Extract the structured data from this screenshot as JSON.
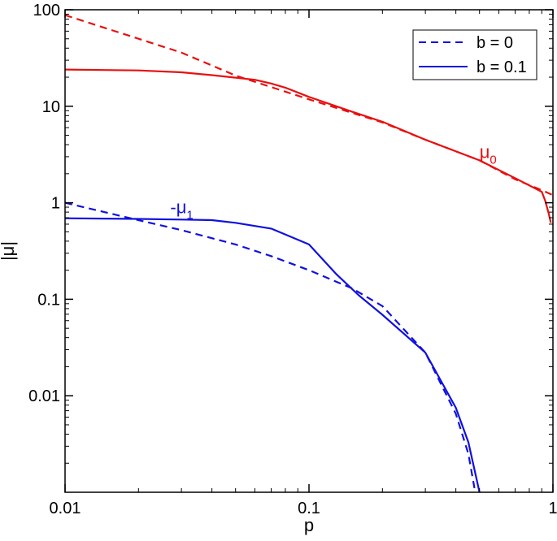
{
  "chart_data": {
    "type": "line",
    "xlabel": "p",
    "ylabel": "|μ|",
    "xscale": "log",
    "yscale": "log",
    "xlim": [
      0.01,
      1
    ],
    "ylim": [
      0.001,
      100
    ],
    "xticks": [
      {
        "value": 0.01,
        "label": "0.01"
      },
      {
        "value": 0.1,
        "label": "0.1"
      },
      {
        "value": 1,
        "label": "1"
      }
    ],
    "yticks": [
      {
        "value": 0.01,
        "label": "0.01"
      },
      {
        "value": 0.1,
        "label": "0.1"
      },
      {
        "value": 1,
        "label": "1"
      },
      {
        "value": 10,
        "label": "10"
      },
      {
        "value": 100,
        "label": "100"
      }
    ],
    "grid": false,
    "legend": {
      "position": "top-right",
      "entries": [
        {
          "label": "b = 0",
          "color": "#1010e0",
          "dash": "dashed"
        },
        {
          "label": "b = 0.1",
          "color": "#1010e0",
          "dash": "solid"
        }
      ]
    },
    "series": [
      {
        "color": "#e81010",
        "dash": "dashed",
        "points": [
          [
            0.01,
            88
          ],
          [
            0.03,
            36
          ],
          [
            0.05,
            20.8
          ],
          [
            0.1,
            11.8
          ],
          [
            0.2,
            6.8
          ],
          [
            0.3,
            4.5
          ],
          [
            0.5,
            2.75
          ],
          [
            0.7,
            1.75
          ],
          [
            0.9,
            1.35
          ],
          [
            1.0,
            1.2
          ]
        ]
      },
      {
        "color": "#e81010",
        "dash": "solid",
        "points": [
          [
            0.01,
            24
          ],
          [
            0.02,
            23.5
          ],
          [
            0.03,
            22.5
          ],
          [
            0.04,
            21
          ],
          [
            0.05,
            19.8
          ],
          [
            0.06,
            18.8
          ],
          [
            0.07,
            17.2
          ],
          [
            0.08,
            15.6
          ],
          [
            0.1,
            12.5
          ],
          [
            0.15,
            8.8
          ],
          [
            0.2,
            6.9
          ],
          [
            0.3,
            4.5
          ],
          [
            0.5,
            2.75
          ],
          [
            0.7,
            1.8
          ],
          [
            0.9,
            1.3
          ],
          [
            0.93,
            1.05
          ],
          [
            0.96,
            0.78
          ],
          [
            0.98,
            0.62
          ]
        ]
      },
      {
        "color": "#1010e0",
        "dash": "dashed",
        "points": [
          [
            0.01,
            1.0
          ],
          [
            0.02,
            0.66
          ],
          [
            0.03,
            0.52
          ],
          [
            0.05,
            0.37
          ],
          [
            0.07,
            0.28
          ],
          [
            0.1,
            0.2
          ],
          [
            0.15,
            0.13
          ],
          [
            0.2,
            0.085
          ],
          [
            0.3,
            0.028
          ],
          [
            0.4,
            0.0065
          ],
          [
            0.45,
            0.0025
          ],
          [
            0.48,
            0.001
          ]
        ]
      },
      {
        "color": "#1010e0",
        "dash": "solid",
        "points": [
          [
            0.01,
            0.69
          ],
          [
            0.02,
            0.68
          ],
          [
            0.03,
            0.67
          ],
          [
            0.04,
            0.66
          ],
          [
            0.05,
            0.62
          ],
          [
            0.07,
            0.54
          ],
          [
            0.1,
            0.37
          ],
          [
            0.13,
            0.18
          ],
          [
            0.16,
            0.11
          ],
          [
            0.2,
            0.069
          ],
          [
            0.25,
            0.042
          ],
          [
            0.3,
            0.028
          ],
          [
            0.4,
            0.0075
          ],
          [
            0.45,
            0.0033
          ],
          [
            0.5,
            0.001
          ]
        ]
      }
    ],
    "annotations": [
      {
        "text": "μ",
        "subscript": "0",
        "x": 0.5,
        "y": 2.9,
        "color": "#e81010"
      },
      {
        "text": "-μ",
        "subscript": "1",
        "x": 0.027,
        "y": 0.78,
        "color": "#1010e0"
      }
    ]
  }
}
